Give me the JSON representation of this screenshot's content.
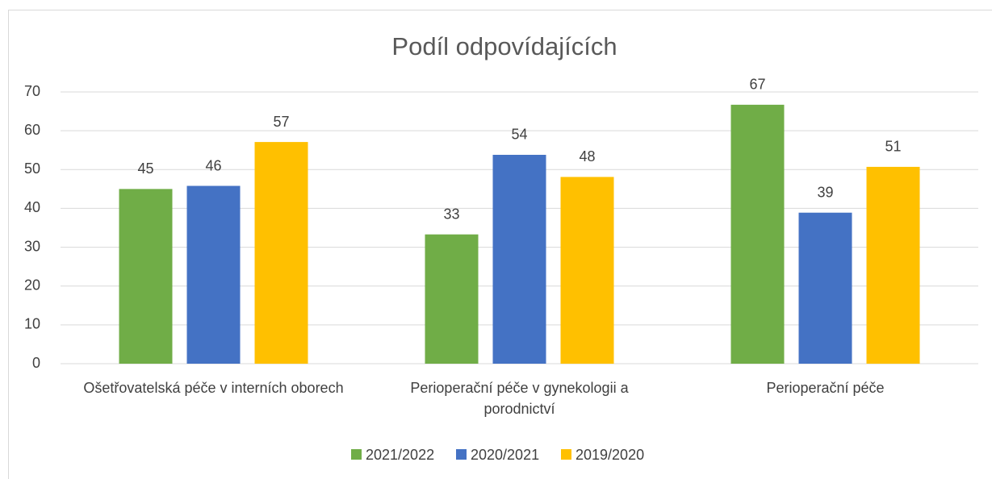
{
  "chart_data": {
    "type": "bar",
    "title": "Podíl odpovídajících",
    "categories": [
      "Ošetřovatelská péče v interních oborech",
      "Perioperační péče v gynekologii a porodnictví",
      "Perioperační péče"
    ],
    "series": [
      {
        "name": "2021/2022",
        "color": "#70ad47",
        "values": [
          45,
          33.3,
          66.7
        ],
        "value_labels": [
          "45",
          "33",
          "67"
        ]
      },
      {
        "name": "2020/2021",
        "color": "#4472c4",
        "values": [
          45.8,
          53.8,
          38.9
        ],
        "value_labels": [
          "46",
          "54",
          "39"
        ]
      },
      {
        "name": "2019/2020",
        "color": "#ffc000",
        "values": [
          57.1,
          48.1,
          50.7
        ],
        "value_labels": [
          "57",
          "48",
          "51"
        ]
      }
    ],
    "ylim": [
      0,
      70
    ],
    "yticks": [
      0,
      10,
      20,
      30,
      40,
      50,
      60,
      70
    ],
    "grid": true,
    "legend": "bottom"
  }
}
